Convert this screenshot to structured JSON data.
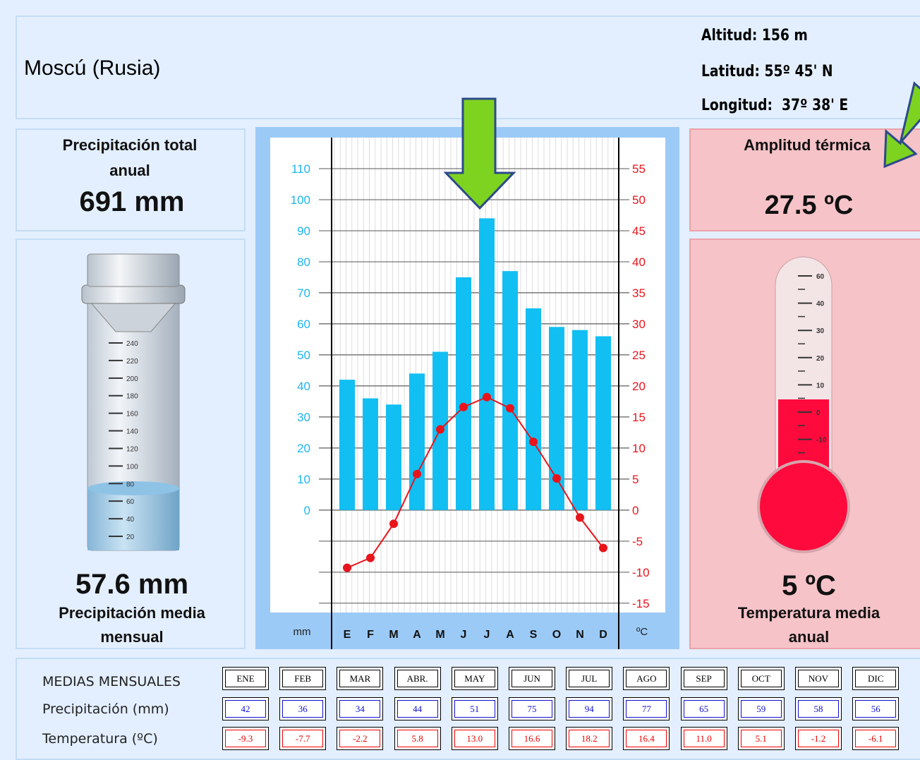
{
  "header": {
    "city": "Moscú (Rusia)",
    "altitude": "Altitud: 156 m",
    "latitude": "Latitud: 55º 45' N",
    "longitude": "Longitud:  37º 38' E"
  },
  "precip_total": {
    "label": "Precipitación total anual",
    "value": "691 mm"
  },
  "precip_mean": {
    "value": "57.6 mm",
    "label": "Precipitación media mensual",
    "gauge_ticks": [
      20,
      40,
      60,
      80,
      100,
      120,
      140,
      160,
      180,
      200,
      220,
      240
    ]
  },
  "amplitude": {
    "label": "Amplitud térmica",
    "value": "27.5 ºC"
  },
  "temp_mean": {
    "value": "5 ºC",
    "label": "Temperatura media anual",
    "thermo_ticks": [
      60,
      40,
      30,
      20,
      10,
      0,
      -10
    ]
  },
  "chart_data": {
    "type": "bar_line",
    "categories": [
      "E",
      "F",
      "M",
      "A",
      "M",
      "J",
      "J",
      "A",
      "S",
      "O",
      "N",
      "D"
    ],
    "y_label": "mm",
    "y2_label": "ºC",
    "series": [
      {
        "name": "Precipitación (mm)",
        "color": "#12bff2",
        "values": [
          42,
          36,
          34,
          44,
          51,
          75,
          94,
          77,
          65,
          59,
          58,
          56
        ]
      },
      {
        "name": "Temperatura (ºC)",
        "color": "#e8141c",
        "axis": "y2",
        "values": [
          -9.3,
          -7.7,
          -2.2,
          5.8,
          13.0,
          16.6,
          18.2,
          16.4,
          11.0,
          5.1,
          -1.2,
          -6.1
        ],
        "value_labels": [
          "-9.3",
          "-7.7",
          "-2.2",
          "5.8",
          "13.0",
          "16.6",
          "18.2",
          "16.4",
          "11.0",
          "5.1",
          "-1.2",
          "-6.1"
        ]
      }
    ],
    "ylim": [
      -33,
      120
    ],
    "yticks": [
      0,
      10,
      20,
      30,
      40,
      50,
      60,
      70,
      80,
      90,
      100,
      110
    ],
    "y2lim": [
      -16.5,
      60
    ],
    "y2ticks": [
      -15,
      -10,
      -5,
      0,
      5,
      10,
      15,
      20,
      25,
      30,
      35,
      40,
      45,
      50,
      55
    ],
    "grid": true
  },
  "table": {
    "title": "MEDIAS MENSUALES",
    "months": [
      "ENE",
      "FEB",
      "MAR",
      "ABR.",
      "MAY",
      "JUN",
      "JUL",
      "AGO",
      "SEP",
      "OCT",
      "NOV",
      "DIC"
    ]
  }
}
